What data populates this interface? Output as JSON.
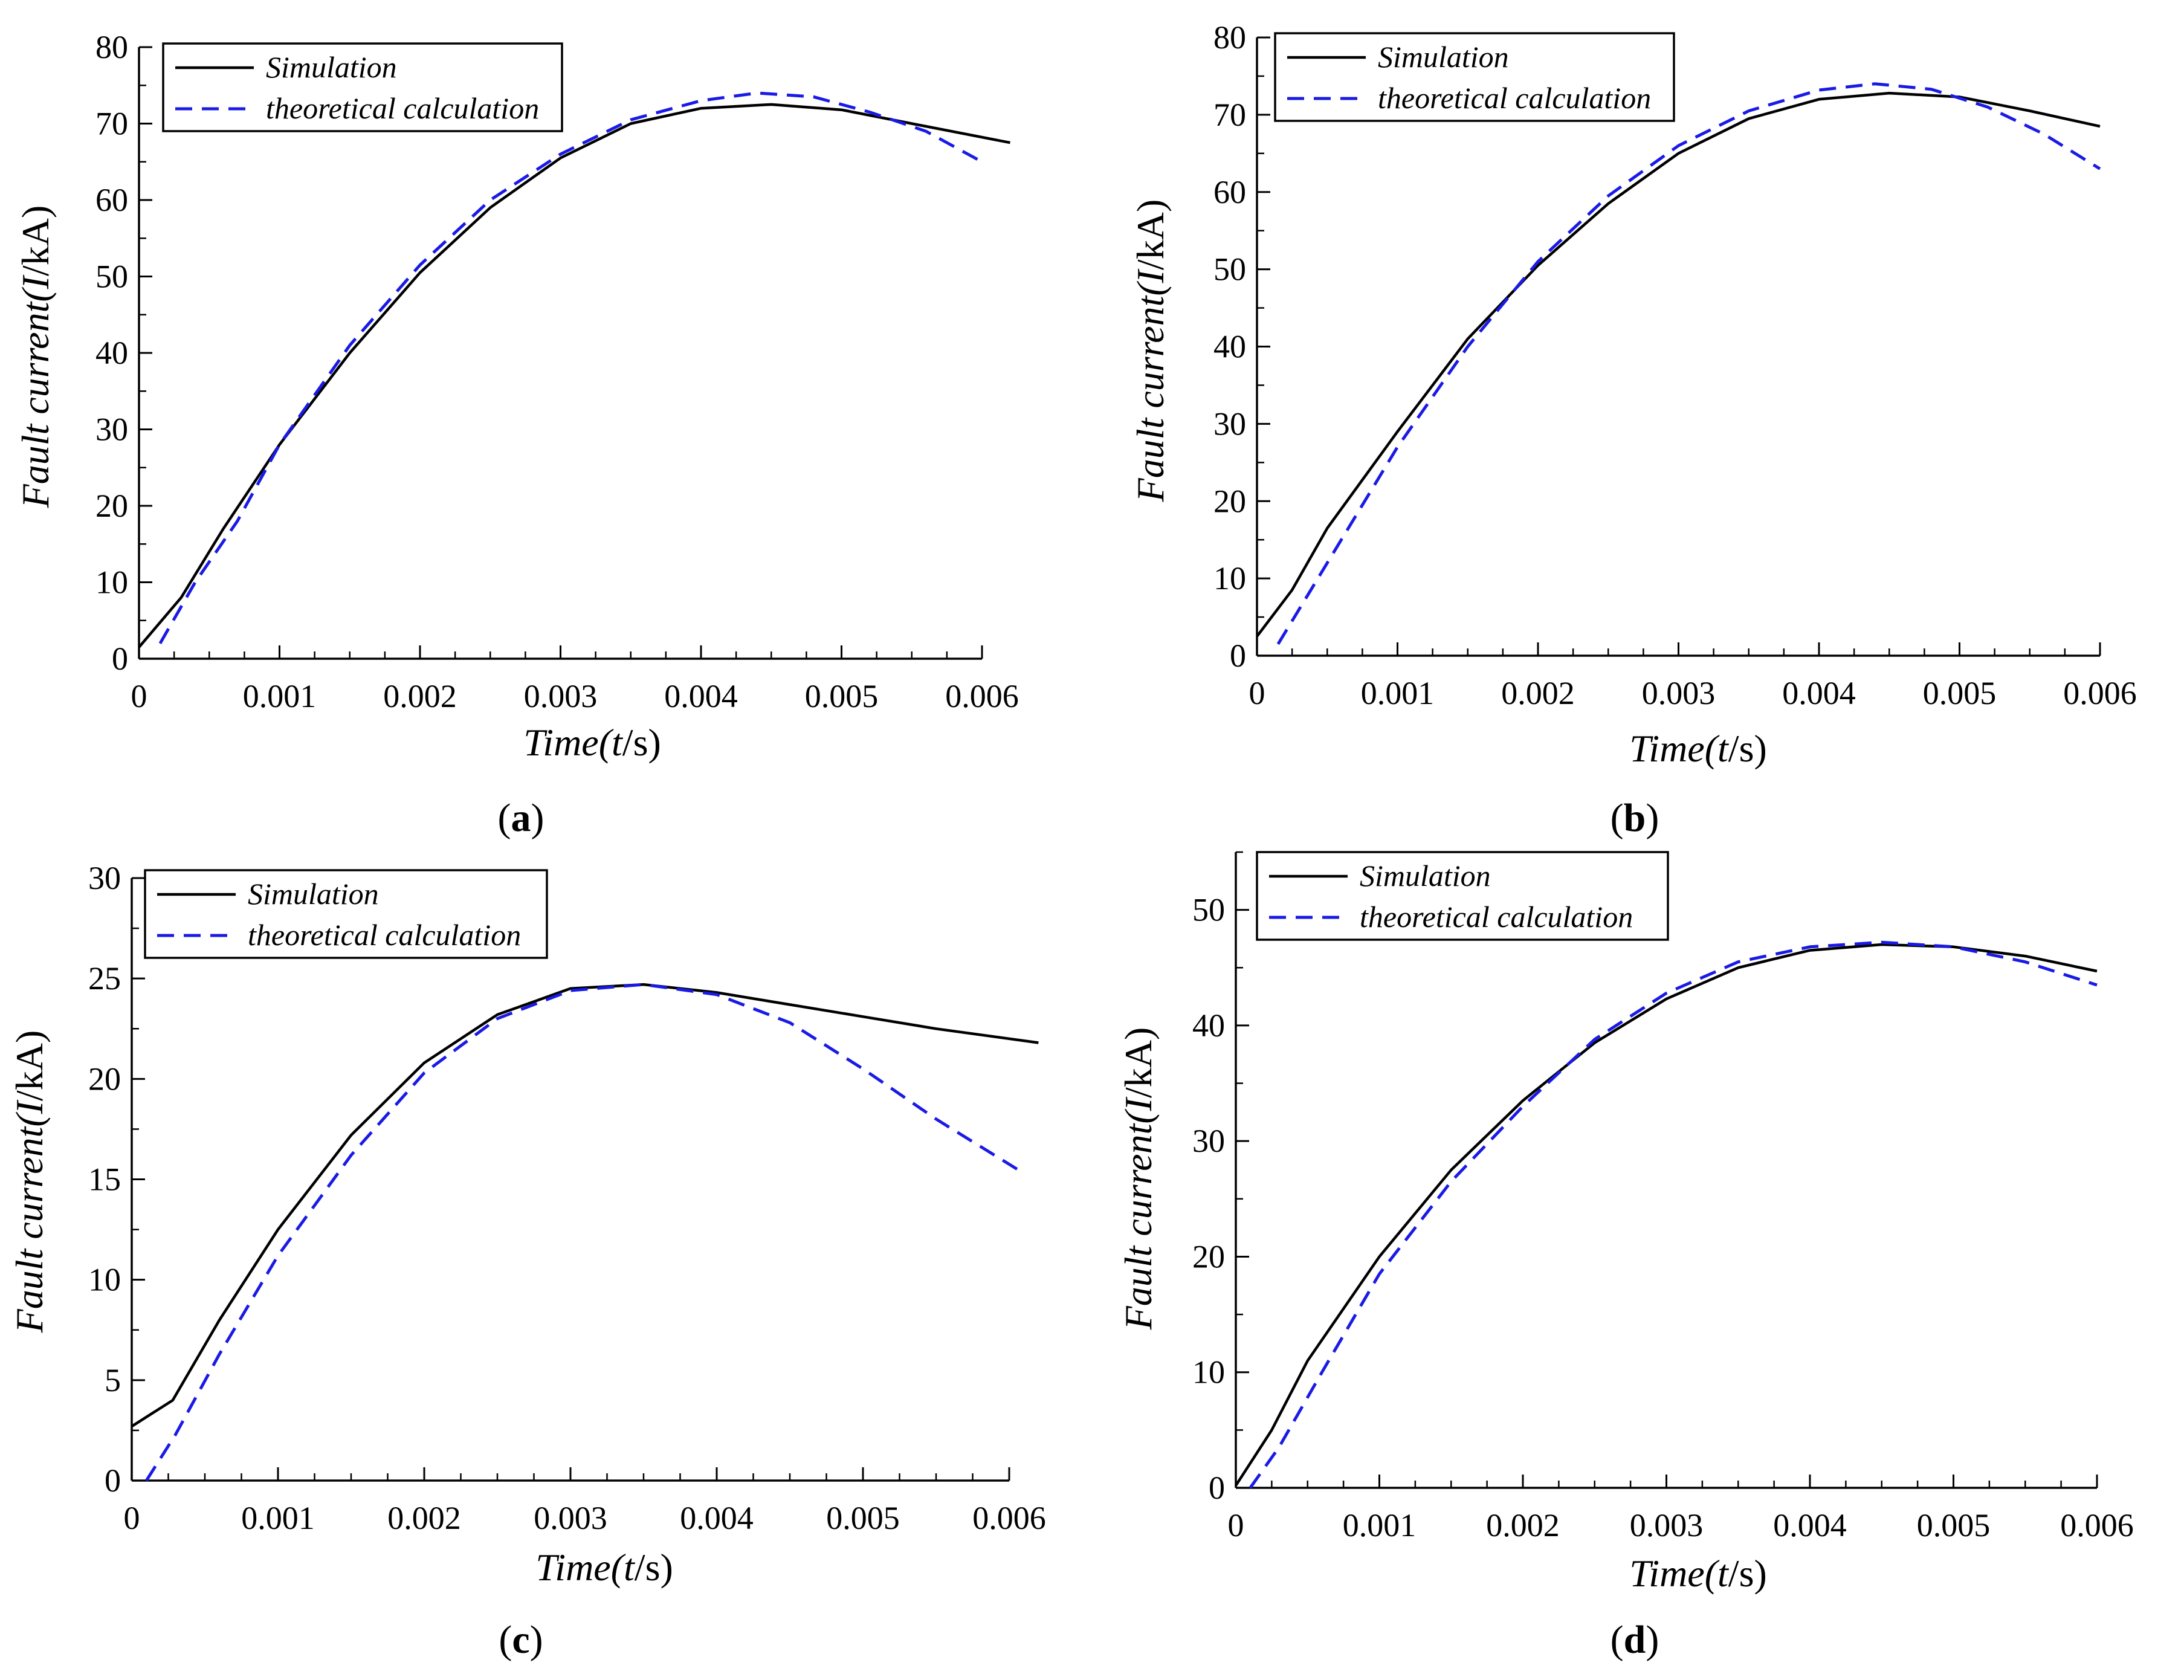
{
  "colors": {
    "simulation": "#000000",
    "theory": "#1a1ae6",
    "axis": "#000000"
  },
  "chart_data": [
    {
      "type": "line",
      "panel_label": "a",
      "xlabel_prefix": "Time(",
      "xlabel_var": "t",
      "xlabel_suffix": "/s)",
      "ylabel_prefix": "Fault current(",
      "ylabel_var": "I",
      "ylabel_suffix": "/kA)",
      "xlim": [
        0,
        0.006
      ],
      "ylim": [
        0,
        80
      ],
      "xticks": [
        0,
        0.001,
        0.002,
        0.003,
        0.004,
        0.005,
        0.006
      ],
      "xtick_labels": [
        "0",
        "0.001",
        "0.002",
        "0.003",
        "0.004",
        "0.005",
        "0.006"
      ],
      "yticks": [
        0,
        10,
        20,
        30,
        40,
        50,
        60,
        70,
        80
      ],
      "ytick_labels": [
        "0",
        "10",
        "20",
        "30",
        "40",
        "50",
        "60",
        "70",
        "80"
      ],
      "legend": [
        "Simulation",
        "theoretical calculation"
      ],
      "series": [
        {
          "name": "Simulation",
          "style": "solid",
          "x": [
            0,
            0.0003,
            0.0006,
            0.001,
            0.0015,
            0.002,
            0.0025,
            0.003,
            0.0035,
            0.004,
            0.0045,
            0.005,
            0.0055,
            0.0062
          ],
          "y": [
            1.5,
            8,
            17,
            28,
            40,
            50.5,
            59,
            65.5,
            70,
            72,
            72.5,
            71.8,
            70,
            67.5
          ]
        },
        {
          "name": "theoretical calculation",
          "style": "dashed",
          "x": [
            0.00015,
            0.0004,
            0.0007,
            0.001,
            0.0015,
            0.002,
            0.0025,
            0.003,
            0.0035,
            0.004,
            0.0044,
            0.0048,
            0.0052,
            0.0056,
            0.006
          ],
          "y": [
            2,
            10,
            18,
            28,
            41,
            51.5,
            60,
            66,
            70.5,
            73,
            74,
            73.5,
            71.5,
            69,
            65
          ]
        }
      ]
    },
    {
      "type": "line",
      "panel_label": "b",
      "xlabel_prefix": "Time(",
      "xlabel_var": "t",
      "xlabel_suffix": "/s)",
      "ylabel_prefix": "Fault current(",
      "ylabel_var": "I",
      "ylabel_suffix": "/kA)",
      "xlim": [
        0,
        0.006
      ],
      "ylim": [
        0,
        80
      ],
      "xticks": [
        0,
        0.001,
        0.002,
        0.003,
        0.004,
        0.005,
        0.006
      ],
      "xtick_labels": [
        "0",
        "0.001",
        "0.002",
        "0.003",
        "0.004",
        "0.005",
        "0.006"
      ],
      "yticks": [
        0,
        10,
        20,
        30,
        40,
        50,
        60,
        70,
        80
      ],
      "ytick_labels": [
        "0",
        "10",
        "20",
        "30",
        "40",
        "50",
        "60",
        "70",
        "80"
      ],
      "legend": [
        "Simulation",
        "theoretical calculation"
      ],
      "series": [
        {
          "name": "Simulation",
          "style": "solid",
          "x": [
            0,
            0.00025,
            0.0005,
            0.001,
            0.0015,
            0.002,
            0.0025,
            0.003,
            0.0035,
            0.004,
            0.0045,
            0.005,
            0.0055,
            0.006
          ],
          "y": [
            2.5,
            8.5,
            16.5,
            29,
            41,
            50.5,
            58.5,
            65,
            69.5,
            72,
            72.8,
            72.3,
            70.5,
            68.5
          ]
        },
        {
          "name": "theoretical calculation",
          "style": "dashed",
          "x": [
            0.00015,
            0.0004,
            0.0007,
            0.001,
            0.0015,
            0.002,
            0.0025,
            0.003,
            0.0035,
            0.004,
            0.0044,
            0.0048,
            0.0052,
            0.0056,
            0.006
          ],
          "y": [
            1.5,
            9,
            18,
            27,
            40,
            51,
            59.5,
            66,
            70.5,
            73.2,
            74,
            73.3,
            71,
            67.5,
            63
          ]
        }
      ]
    },
    {
      "type": "line",
      "panel_label": "c",
      "xlabel_prefix": "Time(",
      "xlabel_var": "t",
      "xlabel_suffix": "/s)",
      "ylabel_prefix": "Fault current(",
      "ylabel_var": "I",
      "ylabel_suffix": "/kA)",
      "xlim": [
        0,
        0.006
      ],
      "ylim": [
        0,
        30
      ],
      "xticks": [
        0,
        0.001,
        0.002,
        0.003,
        0.004,
        0.005,
        0.006
      ],
      "xtick_labels": [
        "0",
        "0.001",
        "0.002",
        "0.003",
        "0.004",
        "0.005",
        "0.006"
      ],
      "yticks": [
        0,
        5,
        10,
        15,
        20,
        25,
        30
      ],
      "ytick_labels": [
        "0",
        "5",
        "10",
        "15",
        "20",
        "25",
        "30"
      ],
      "legend": [
        "Simulation",
        "theoretical calculation"
      ],
      "series": [
        {
          "name": "Simulation",
          "style": "solid",
          "x": [
            0,
            0.00028,
            0.0006,
            0.001,
            0.0015,
            0.002,
            0.0025,
            0.003,
            0.0035,
            0.004,
            0.0045,
            0.005,
            0.0055,
            0.0062
          ],
          "y": [
            2.7,
            4,
            8,
            12.5,
            17.2,
            20.8,
            23.2,
            24.5,
            24.7,
            24.3,
            23.7,
            23.1,
            22.5,
            21.8
          ]
        },
        {
          "name": "theoretical calculation",
          "style": "dashed",
          "x": [
            0.0001,
            0.0003,
            0.0006,
            0.001,
            0.0015,
            0.002,
            0.0025,
            0.003,
            0.0035,
            0.004,
            0.0045,
            0.005,
            0.0055,
            0.0061
          ],
          "y": [
            0,
            2.3,
            6.3,
            11.2,
            16.2,
            20.3,
            23,
            24.4,
            24.7,
            24.2,
            22.8,
            20.5,
            18,
            15.3
          ]
        }
      ]
    },
    {
      "type": "line",
      "panel_label": "d",
      "xlabel_prefix": "Time(",
      "xlabel_var": "t",
      "xlabel_suffix": "/s)",
      "ylabel_prefix": "Fault current(",
      "ylabel_var": "I",
      "ylabel_suffix": "/kA)",
      "xlim": [
        0,
        0.006
      ],
      "ylim": [
        0,
        55
      ],
      "xticks": [
        0,
        0.001,
        0.002,
        0.003,
        0.004,
        0.005,
        0.006
      ],
      "xtick_labels": [
        "0",
        "0.001",
        "0.002",
        "0.003",
        "0.004",
        "0.005",
        "0.006"
      ],
      "yticks": [
        0,
        10,
        20,
        30,
        40,
        50
      ],
      "ytick_labels": [
        "0",
        "10",
        "20",
        "30",
        "40",
        "50"
      ],
      "legend": [
        "Simulation",
        "theoretical calculation"
      ],
      "series": [
        {
          "name": "Simulation",
          "style": "solid",
          "x": [
            0,
            0.00025,
            0.0005,
            0.001,
            0.0015,
            0.002,
            0.0025,
            0.003,
            0.0035,
            0.004,
            0.0045,
            0.005,
            0.0055,
            0.006
          ],
          "y": [
            0.2,
            5,
            11,
            20,
            27.5,
            33.5,
            38.5,
            42.3,
            45,
            46.5,
            47,
            46.8,
            46,
            44.7
          ]
        },
        {
          "name": "theoretical calculation",
          "style": "dashed",
          "x": [
            0.0001,
            0.0003,
            0.0006,
            0.001,
            0.0015,
            0.002,
            0.0025,
            0.003,
            0.0035,
            0.004,
            0.0045,
            0.005,
            0.0055,
            0.006
          ],
          "y": [
            0,
            3.5,
            10,
            18.5,
            26.5,
            33,
            38.8,
            42.8,
            45.5,
            46.8,
            47.2,
            46.8,
            45.5,
            43.5
          ]
        }
      ]
    }
  ]
}
